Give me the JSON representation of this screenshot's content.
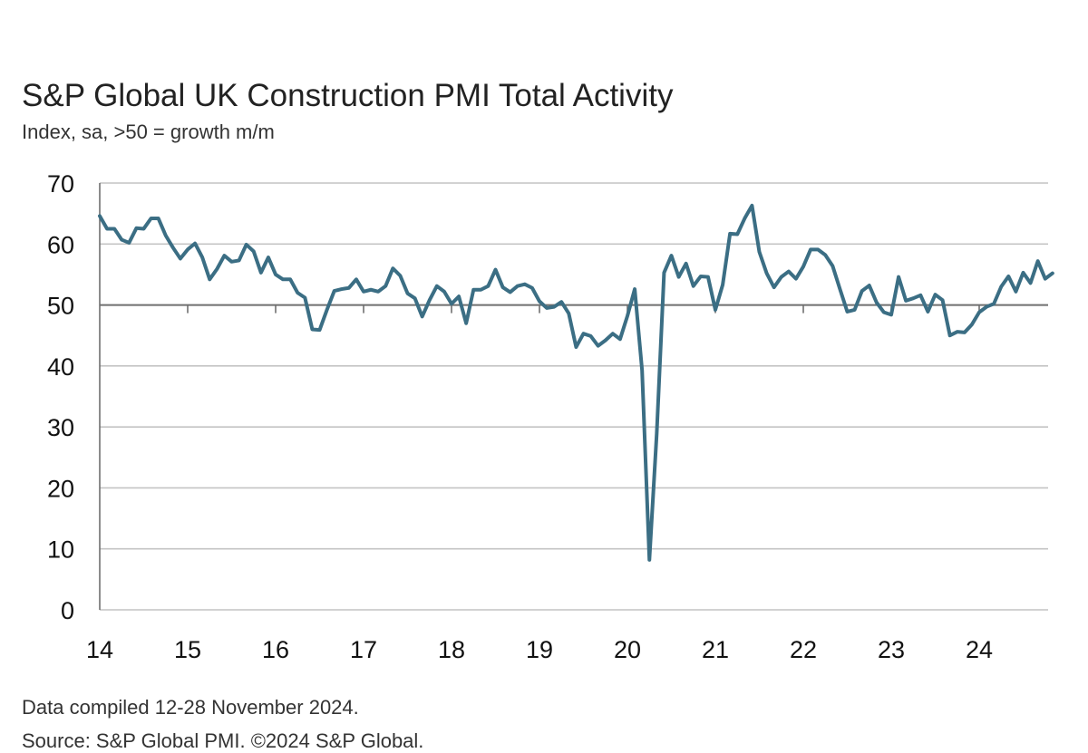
{
  "chart_data": {
    "type": "line",
    "title": "S&P Global UK Construction PMI Total Activity",
    "subtitle": "Index, sa, >50 = growth m/m",
    "xlabel": "",
    "ylabel": "",
    "ylim": [
      0,
      70
    ],
    "yticks": [
      "0",
      "10",
      "20",
      "30",
      "40",
      "50",
      "60",
      "70"
    ],
    "xticks": [
      "14",
      "15",
      "16",
      "17",
      "18",
      "19",
      "20",
      "21",
      "22",
      "23",
      "24"
    ],
    "grid": true,
    "reference_line": 50,
    "line_color": "#3b6e84",
    "series": [
      {
        "x_start": "2014-01",
        "frequency": "monthly",
        "values": [
          64.6,
          62.5,
          62.5,
          60.7,
          60.2,
          62.6,
          62.5,
          64.2,
          64.2,
          61.4,
          59.4,
          57.6,
          59.1,
          60.1,
          57.8,
          54.2,
          55.9,
          58.1,
          57.1,
          57.3,
          59.9,
          58.8,
          55.3,
          57.8,
          55.0,
          54.2,
          54.2,
          52.0,
          51.2,
          46.0,
          45.9,
          49.2,
          52.3,
          52.6,
          52.8,
          54.2,
          52.2,
          52.5,
          52.2,
          53.1,
          56.0,
          54.8,
          51.9,
          51.1,
          48.1,
          50.8,
          53.1,
          52.2,
          50.2,
          51.4,
          47.0,
          52.5,
          52.5,
          53.1,
          55.8,
          52.9,
          52.1,
          53.1,
          53.4,
          52.8,
          50.6,
          49.5,
          49.7,
          50.5,
          48.6,
          43.1,
          45.3,
          44.9,
          43.3,
          44.2,
          45.3,
          44.4,
          48.2,
          52.6,
          39.3,
          8.2,
          28.9,
          55.3,
          58.1,
          54.6,
          56.8,
          53.1,
          54.7,
          54.6,
          49.2,
          53.3,
          61.7,
          61.6,
          64.2,
          66.3,
          58.7,
          55.2,
          52.9,
          54.6,
          55.5,
          54.3,
          56.3,
          59.1,
          59.1,
          58.2,
          56.4,
          52.6,
          48.9,
          49.2,
          52.3,
          53.2,
          50.4,
          48.8,
          48.4,
          54.6,
          50.7,
          51.1,
          51.6,
          48.9,
          51.7,
          50.8,
          45.0,
          45.6,
          45.5,
          46.8,
          48.8,
          49.7,
          50.2,
          53.0,
          54.7,
          52.2,
          55.3,
          53.6,
          57.2,
          54.3,
          55.2
        ]
      }
    ]
  },
  "notes": {
    "compiled": "Data compiled 12-28 November 2024.",
    "source": "Source: S&P Global PMI. ©2024 S&P Global."
  }
}
